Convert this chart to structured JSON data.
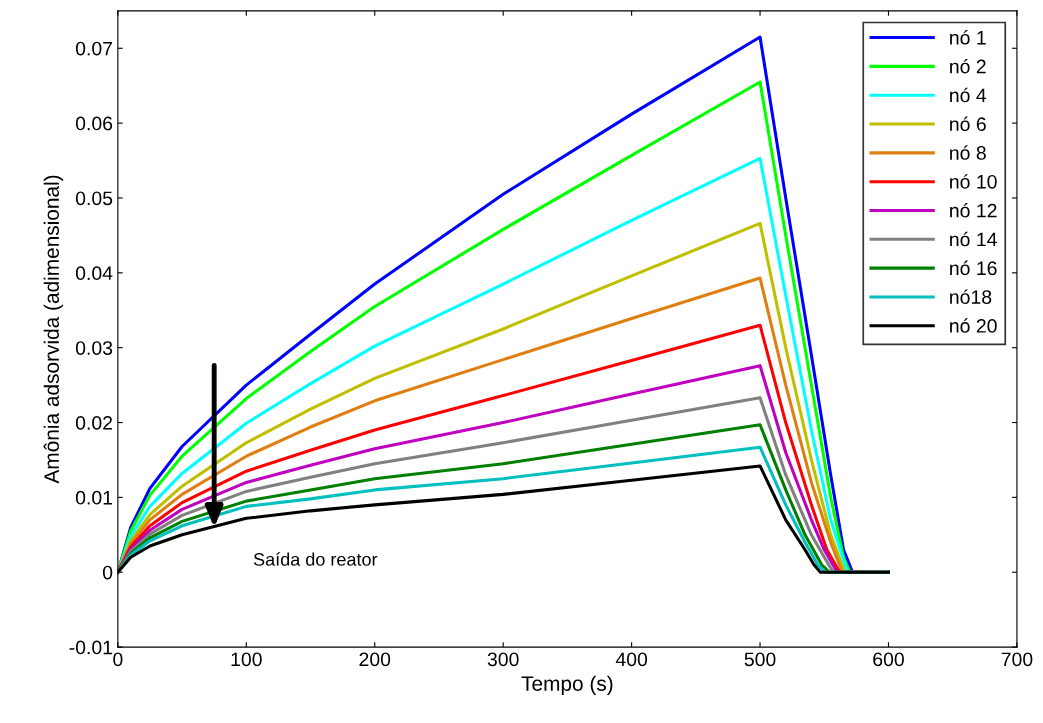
{
  "chart_data": {
    "type": "line",
    "xlabel": "Tempo (s)",
    "ylabel": "Amônia adsorvida (adimensional)",
    "xlim": [
      0,
      700
    ],
    "ylim": [
      -0.01,
      0.075
    ],
    "xticks": [
      0,
      100,
      200,
      300,
      400,
      500,
      600,
      700
    ],
    "yticks": [
      -0.01,
      0,
      0.01,
      0.02,
      0.03,
      0.04,
      0.05,
      0.06,
      0.07
    ],
    "grid": false,
    "legend": "top right",
    "marker": "none",
    "line_style": "solid",
    "annotations": [
      {
        "text": "Saída do reator",
        "x": 75,
        "y": 0.0056
      }
    ],
    "series": [
      {
        "name": "nó 1",
        "color": "#0000ff",
        "x": [
          0,
          10,
          25,
          50,
          100,
          150,
          200,
          300,
          400,
          500,
          520,
          540,
          555,
          565,
          572,
          600
        ],
        "values": [
          0,
          0.006,
          0.0112,
          0.0168,
          0.025,
          0.0318,
          0.0385,
          0.0505,
          0.0612,
          0.0715,
          0.05,
          0.029,
          0.013,
          0.003,
          0,
          0
        ]
      },
      {
        "name": "nó 2",
        "color": "#00ff00",
        "x": [
          0,
          10,
          25,
          50,
          100,
          150,
          200,
          300,
          400,
          500,
          520,
          540,
          555,
          565,
          570,
          600
        ],
        "values": [
          0,
          0.0055,
          0.0103,
          0.0155,
          0.0232,
          0.0295,
          0.0355,
          0.0458,
          0.0557,
          0.0655,
          0.045,
          0.025,
          0.01,
          0.002,
          0,
          0
        ]
      },
      {
        "name": "nó 4",
        "color": "#00ffff",
        "x": [
          0,
          10,
          25,
          50,
          100,
          150,
          200,
          300,
          400,
          500,
          520,
          540,
          555,
          568,
          600
        ],
        "values": [
          0,
          0.0048,
          0.0088,
          0.0132,
          0.0199,
          0.0252,
          0.0302,
          0.0385,
          0.047,
          0.0553,
          0.037,
          0.019,
          0.007,
          0,
          0
        ]
      },
      {
        "name": "nó 6",
        "color": "#bfbf00",
        "x": [
          0,
          10,
          25,
          50,
          100,
          150,
          200,
          300,
          400,
          500,
          520,
          540,
          555,
          566,
          600
        ],
        "values": [
          0,
          0.0042,
          0.0077,
          0.0115,
          0.0173,
          0.0218,
          0.0259,
          0.0325,
          0.0396,
          0.0466,
          0.03,
          0.015,
          0.005,
          0,
          0
        ]
      },
      {
        "name": "nó 8",
        "color": "#e07f10",
        "x": [
          0,
          10,
          25,
          50,
          100,
          150,
          200,
          300,
          400,
          500,
          520,
          540,
          555,
          564,
          600
        ],
        "values": [
          0,
          0.0038,
          0.007,
          0.0104,
          0.0155,
          0.0194,
          0.0229,
          0.0284,
          0.0339,
          0.0393,
          0.025,
          0.012,
          0.004,
          0,
          0
        ]
      },
      {
        "name": "nó 10",
        "color": "#ff0000",
        "x": [
          0,
          10,
          25,
          50,
          100,
          150,
          200,
          300,
          400,
          500,
          520,
          540,
          552,
          562,
          600
        ],
        "values": [
          0,
          0.0034,
          0.0062,
          0.0093,
          0.0135,
          0.0163,
          0.019,
          0.0236,
          0.0283,
          0.033,
          0.02,
          0.009,
          0.003,
          0,
          0
        ]
      },
      {
        "name": "nó 12",
        "color": "#bf00bf",
        "x": [
          0,
          10,
          25,
          50,
          100,
          150,
          200,
          300,
          400,
          500,
          520,
          540,
          550,
          560,
          600
        ],
        "values": [
          0,
          0.0031,
          0.0056,
          0.0084,
          0.012,
          0.0143,
          0.0165,
          0.02,
          0.0238,
          0.0276,
          0.016,
          0.007,
          0.003,
          0,
          0
        ]
      },
      {
        "name": "nó 14",
        "color": "#808080",
        "x": [
          0,
          10,
          25,
          50,
          100,
          150,
          200,
          300,
          400,
          500,
          520,
          540,
          550,
          557,
          600
        ],
        "values": [
          0,
          0.0028,
          0.0051,
          0.0076,
          0.0108,
          0.0127,
          0.0145,
          0.0173,
          0.0203,
          0.0233,
          0.013,
          0.005,
          0.002,
          0,
          0
        ]
      },
      {
        "name": "nó 16",
        "color": "#007f00",
        "x": [
          0,
          10,
          25,
          50,
          100,
          150,
          200,
          300,
          400,
          500,
          520,
          535,
          548,
          554,
          600
        ],
        "values": [
          0,
          0.0025,
          0.0046,
          0.0068,
          0.0095,
          0.011,
          0.0125,
          0.0145,
          0.0171,
          0.0197,
          0.011,
          0.005,
          0.001,
          0,
          0
        ]
      },
      {
        "name": "nó18",
        "color": "#00bfbf",
        "x": [
          0,
          10,
          25,
          50,
          100,
          150,
          200,
          300,
          400,
          500,
          520,
          535,
          545,
          551,
          600
        ],
        "values": [
          0,
          0.0023,
          0.0042,
          0.0062,
          0.0088,
          0.0098,
          0.011,
          0.0125,
          0.0146,
          0.0167,
          0.009,
          0.004,
          0.001,
          0,
          0
        ]
      },
      {
        "name": "nó 20",
        "color": "#000000",
        "x": [
          0,
          10,
          25,
          50,
          100,
          150,
          200,
          300,
          400,
          500,
          520,
          535,
          542,
          547,
          600
        ],
        "values": [
          0,
          0.002,
          0.0035,
          0.005,
          0.0072,
          0.0082,
          0.009,
          0.0104,
          0.0123,
          0.0142,
          0.007,
          0.003,
          0.001,
          0,
          0
        ]
      }
    ]
  }
}
